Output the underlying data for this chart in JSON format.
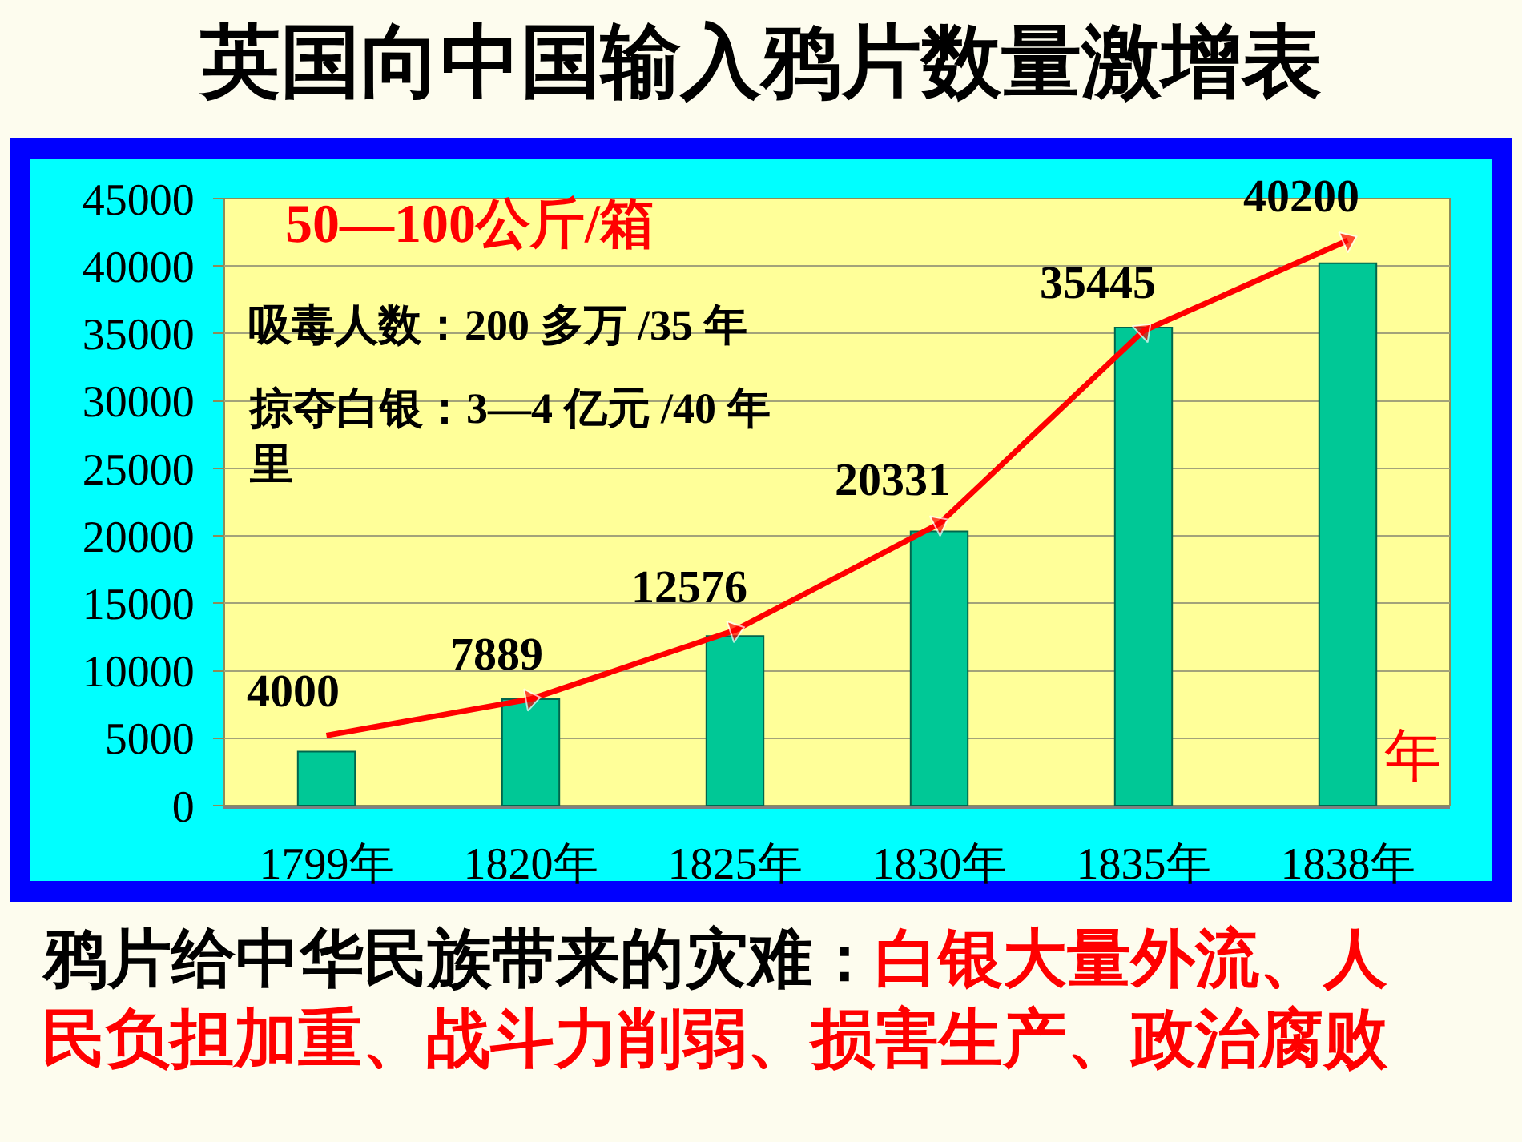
{
  "chart_data": {
    "type": "bar",
    "title": "英国向中国输入鸦片数量激增表",
    "xlabel": "年",
    "ylabel": "50—100公斤/箱",
    "annotations": [
      "吸毒人数：200 多万 /35 年",
      "掠夺白银：3—4 亿元 /40 年里",
      "鸦片给中华民族带来的灾难：",
      "白银大量外流、人",
      "民负担加重、战斗力削弱、损害生产、政治腐败"
    ],
    "categories": [
      "1799年",
      "1820年",
      "1825年",
      "1830年",
      "1835年",
      "1838年"
    ],
    "series": [
      {
        "color": "#00c896",
        "values": [
          4000,
          7889,
          12576,
          20331,
          35445,
          40200
        ],
        "value_labels": [
          "4000",
          "7889",
          "12576",
          "20331",
          "35445",
          "40200"
        ]
      },
      {
        "type": "line",
        "color": "#ff0000",
        "values": [
          5200,
          7900,
          13000,
          20900,
          35200,
          41900
        ],
        "marker": "triangle"
      }
    ],
    "ylim": [
      0,
      45000
    ],
    "yticks": [
      0,
      5000,
      10000,
      15000,
      20000,
      25000,
      30000,
      35000,
      40000,
      45000
    ],
    "grid": "y"
  }
}
